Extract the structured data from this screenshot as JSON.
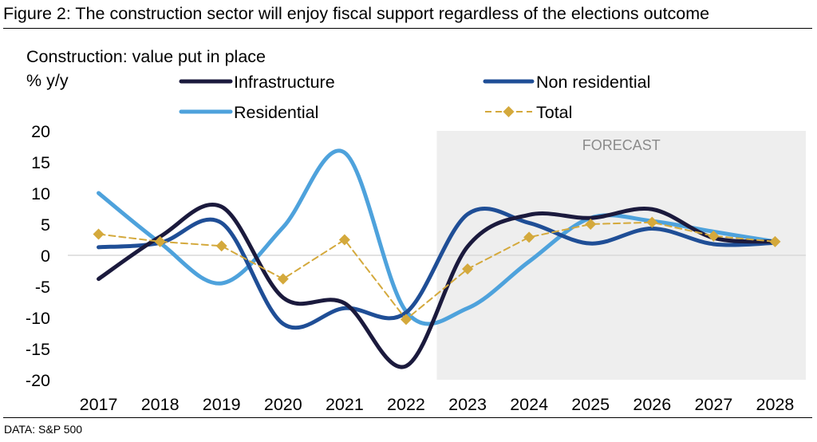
{
  "figure": {
    "title": "Figure 2: The construction sector will enjoy fiscal support regardless of the elections outcome",
    "source": "DATA: S&P 500"
  },
  "chart_data": {
    "type": "line",
    "title": "Construction: value put in place",
    "ylabel": "% y/y",
    "xlabel": "",
    "ylim": [
      -20,
      20
    ],
    "yticks": [
      20,
      15,
      10,
      5,
      0,
      -5,
      -10,
      -15,
      -20
    ],
    "categories": [
      "2017",
      "2018",
      "2019",
      "2020",
      "2021",
      "2022",
      "2023",
      "2024",
      "2025",
      "2026",
      "2027",
      "2028"
    ],
    "forecast": {
      "label": "FORECAST",
      "from": "2023",
      "to": "2028"
    },
    "series": [
      {
        "name": "Infrastructure",
        "color": "#1b1a3d",
        "style": "solid",
        "smooth": true,
        "values": [
          -3.8,
          3.0,
          7.8,
          -6.8,
          -7.7,
          -17.8,
          1.4,
          6.5,
          6.0,
          7.4,
          2.8,
          2.2
        ]
      },
      {
        "name": "Non residential",
        "color": "#1f4e96",
        "style": "solid",
        "smooth": true,
        "values": [
          1.3,
          2.0,
          5.2,
          -11.0,
          -8.5,
          -9.2,
          6.6,
          5.2,
          1.9,
          4.3,
          1.8,
          2.0
        ]
      },
      {
        "name": "Residential",
        "color": "#4ea2dc",
        "style": "solid",
        "smooth": true,
        "values": [
          10.0,
          2.0,
          -4.5,
          4.5,
          16.5,
          -9.0,
          -8.5,
          -1.0,
          6.0,
          5.5,
          3.8,
          2.2
        ]
      },
      {
        "name": "Total",
        "color": "#d4a93c",
        "style": "dashed",
        "marker": "diamond",
        "smooth": false,
        "values": [
          3.4,
          2.2,
          1.5,
          -3.8,
          2.5,
          -10.3,
          -2.2,
          2.9,
          5.0,
          5.3,
          3.1,
          2.2
        ]
      }
    ],
    "legend": {
      "position": "top"
    }
  }
}
